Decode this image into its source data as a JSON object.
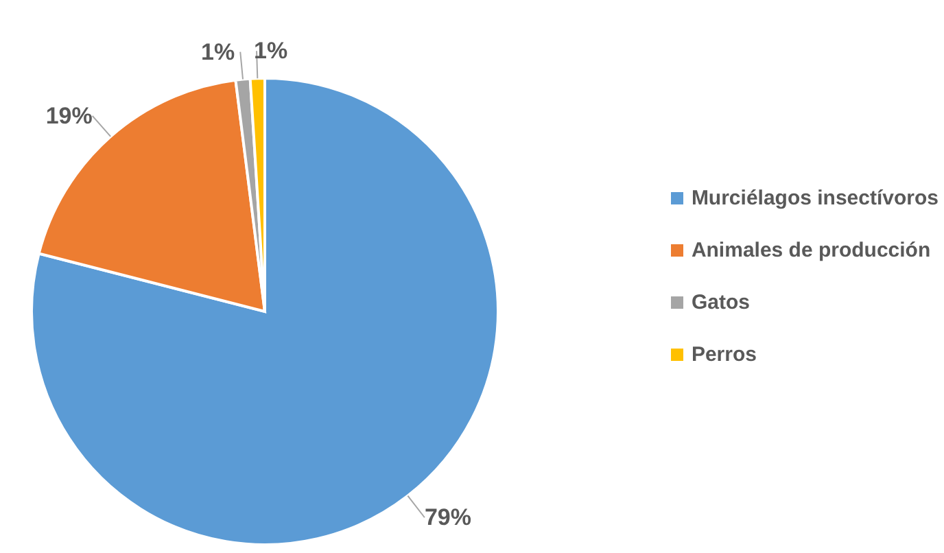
{
  "chart_data": {
    "type": "pie",
    "categories": [
      "Murciélagos insectívoros",
      "Animales de producción",
      "Gatos",
      "Perros"
    ],
    "values": [
      79,
      19,
      1,
      1
    ],
    "colors": [
      "#5b9bd5",
      "#ed7d31",
      "#a5a5a5",
      "#ffc000"
    ],
    "value_labels": [
      "79%",
      "19%",
      "1%",
      "1%"
    ],
    "legend": "right"
  }
}
